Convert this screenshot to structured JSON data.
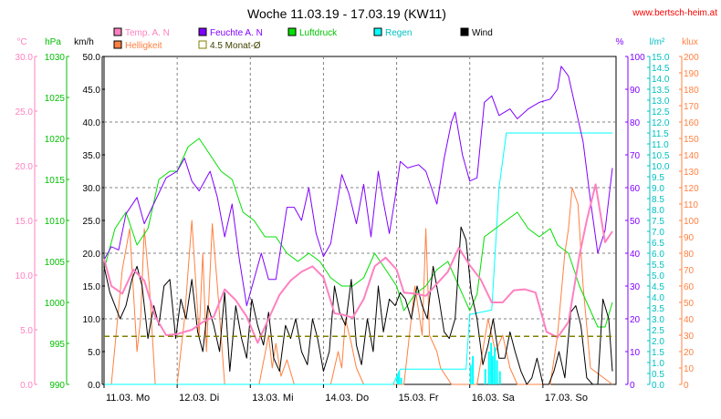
{
  "chart_data": {
    "type": "line",
    "title": "Woche 11.03.19 - 17.03.19 (KW11)",
    "source": "www.bertsch-heim.at",
    "days": [
      "11.03.  Mo",
      "12.03.  Di",
      "13.03.  Mi",
      "14.03.  Do",
      "15.03.  Fr",
      "16.03.  Sa",
      "17.03.  So"
    ],
    "axes": {
      "temp": {
        "label": "°C",
        "min": 0,
        "max": 30,
        "step": 5,
        "decimals": 1,
        "color": "#ff80c0"
      },
      "pres": {
        "label": "hPa",
        "min": 990,
        "max": 1030,
        "step": 5,
        "decimals": 0,
        "color": "#00c000"
      },
      "wind": {
        "label": "km/h",
        "min": 0,
        "max": 50,
        "step": 5,
        "decimals": 1,
        "color": "#000000"
      },
      "hum": {
        "label": "%",
        "min": 0,
        "max": 100,
        "step": 10,
        "decimals": 0,
        "color": "#8000ff"
      },
      "rain": {
        "label": "l/m²",
        "min": 0,
        "max": 15,
        "step": 0.5,
        "decimals": 1,
        "color": "#00c0c0"
      },
      "light": {
        "label": "klux",
        "min": 0,
        "max": 200,
        "step": 10,
        "decimals": 0,
        "color": "#ff8040"
      }
    },
    "legend": [
      {
        "name": "Temp. A. N",
        "color": "#ff80c0",
        "filled": true
      },
      {
        "name": "Feuchte A. N",
        "color": "#8000ff",
        "filled": true
      },
      {
        "name": "Luftdruck",
        "color": "#00e000",
        "filled": true
      },
      {
        "name": "Regen",
        "color": "#00ffff",
        "filled": true
      },
      {
        "name": "Wind",
        "color": "#000000",
        "filled": true
      },
      {
        "name": "Helligkeit",
        "color": "#ff8040",
        "filled": true
      },
      {
        "name": "4.5 Monat-Ø",
        "color": "#808000",
        "filled": false
      }
    ],
    "series": [
      {
        "name": "Temp. A. N",
        "axis": "temp",
        "color": "#ff80c0",
        "width": 2,
        "x": [
          0,
          0.1,
          0.25,
          0.4,
          0.55,
          0.7,
          0.85,
          1.0,
          1.2,
          1.35,
          1.5,
          1.65,
          1.8,
          1.95,
          2.1,
          2.25,
          2.4,
          2.55,
          2.7,
          2.85,
          3.0,
          3.15,
          3.25,
          3.4,
          3.55,
          3.7,
          3.85,
          4.0,
          4.1,
          4.25,
          4.4,
          4.55,
          4.7,
          4.85,
          5.0,
          5.15,
          5.3,
          5.45,
          5.6,
          5.75,
          5.9,
          6.05,
          6.2,
          6.35,
          6.5,
          6.6,
          6.72,
          6.85,
          6.95
        ],
        "y": [
          11.5,
          9.0,
          8.3,
          10.5,
          9.5,
          6.2,
          4.5,
          4.6,
          5.0,
          5.7,
          6.2,
          8.7,
          7.7,
          6.2,
          3.8,
          6.0,
          8.2,
          9.5,
          10.3,
          10.8,
          9.8,
          6.5,
          6.4,
          6.1,
          7.8,
          10.8,
          11.6,
          10.5,
          8.4,
          8.3,
          8.1,
          9.2,
          10.3,
          12.5,
          10.9,
          9.6,
          7.5,
          7.5,
          8.6,
          8.7,
          8.4,
          4.8,
          4.3,
          5.7,
          11.8,
          15.0,
          18.3,
          13.0,
          14.0
        ]
      },
      {
        "name": "Feuchte A. N",
        "axis": "hum",
        "color": "#8000ff",
        "width": 1,
        "x": [
          0,
          0.1,
          0.2,
          0.3,
          0.45,
          0.55,
          0.7,
          0.85,
          1.0,
          1.1,
          1.2,
          1.3,
          1.45,
          1.55,
          1.65,
          1.75,
          1.85,
          1.95,
          2.05,
          2.15,
          2.25,
          2.35,
          2.5,
          2.6,
          2.7,
          2.8,
          2.9,
          3.0,
          3.1,
          3.25,
          3.35,
          3.45,
          3.55,
          3.65,
          3.75,
          3.8,
          3.9,
          3.98,
          4.05,
          4.15,
          4.3,
          4.4,
          4.55,
          4.65,
          4.75,
          4.8,
          4.9,
          5.0,
          5.1,
          5.2,
          5.3,
          5.4,
          5.55,
          5.65,
          5.8,
          5.95,
          6.1,
          6.2,
          6.25,
          6.35,
          6.45,
          6.55,
          6.65,
          6.75,
          6.85,
          6.95
        ],
        "y": [
          38,
          42,
          41,
          52,
          57,
          49,
          56,
          63,
          65,
          69,
          62,
          59,
          65,
          57,
          45,
          55,
          38,
          24,
          32,
          40,
          32,
          32,
          54,
          54,
          50,
          60,
          46,
          39,
          43,
          64,
          58,
          49,
          61,
          45,
          65,
          58,
          46,
          57,
          68,
          66,
          67,
          65,
          55,
          69,
          80,
          83,
          70,
          62,
          63,
          86,
          88,
          82,
          84,
          81,
          84,
          86,
          87,
          90,
          97,
          94,
          84,
          74,
          56,
          40,
          47,
          66
        ]
      },
      {
        "name": "Luftdruck",
        "axis": "pres",
        "color": "#00e000",
        "width": 1,
        "x": [
          0,
          0.15,
          0.3,
          0.45,
          0.6,
          0.75,
          0.9,
          1.0,
          1.15,
          1.3,
          1.45,
          1.6,
          1.75,
          1.9,
          2.05,
          2.2,
          2.35,
          2.5,
          2.65,
          2.8,
          2.95,
          3.1,
          3.25,
          3.4,
          3.55,
          3.7,
          3.85,
          4.0,
          4.1,
          4.25,
          4.4,
          4.55,
          4.7,
          4.85,
          5.0,
          5.1,
          5.2,
          5.35,
          5.5,
          5.65,
          5.8,
          5.95,
          6.1,
          6.2,
          6.35,
          6.5,
          6.6,
          6.75,
          6.85,
          6.95
        ],
        "y": [
          1004,
          1009,
          1011,
          1007,
          1009,
          1015,
          1016,
          1016,
          1019,
          1020,
          1018,
          1016,
          1015,
          1011,
          1010,
          1008,
          1008,
          1006,
          1005,
          1006,
          1005,
          1003,
          1002,
          1002,
          1003,
          1006,
          1004,
          1002,
          999,
          1001,
          1002,
          1004,
          1005,
          1002,
          999,
          1001,
          1008,
          1009,
          1010,
          1011,
          1009,
          1008,
          1009,
          1007,
          1006,
          1002,
          1000,
          997,
          997,
          1000
        ]
      },
      {
        "name": "Regen",
        "axis": "rain",
        "color": "#00ffff",
        "width": 1,
        "x": [
          0,
          3.95,
          4.05,
          4.5,
          4.65,
          4.95,
          5.0,
          5.3,
          5.4,
          5.5,
          6.95
        ],
        "y": [
          0,
          0,
          0.7,
          0.7,
          0.7,
          0.7,
          3.2,
          3.4,
          9.0,
          11.5,
          11.5
        ]
      },
      {
        "name": "Wind",
        "axis": "wind",
        "color": "#000000",
        "width": 1,
        "x": [
          0,
          0.08,
          0.15,
          0.22,
          0.3,
          0.38,
          0.45,
          0.52,
          0.6,
          0.68,
          0.75,
          0.82,
          0.9,
          0.98,
          1.05,
          1.12,
          1.2,
          1.28,
          1.35,
          1.42,
          1.5,
          1.58,
          1.65,
          1.72,
          1.8,
          1.88,
          1.95,
          2.02,
          2.1,
          2.18,
          2.25,
          2.32,
          2.4,
          2.48,
          2.55,
          2.62,
          2.7,
          2.78,
          2.85,
          2.92,
          3.0,
          3.08,
          3.15,
          3.22,
          3.3,
          3.38,
          3.45,
          3.52,
          3.6,
          3.68,
          3.75,
          3.82,
          3.9,
          3.98,
          4.05,
          4.12,
          4.2,
          4.28,
          4.35,
          4.42,
          4.5,
          4.58,
          4.65,
          4.72,
          4.8,
          4.88,
          4.95,
          5.02,
          5.1,
          5.18,
          5.25,
          5.32,
          5.4,
          5.48,
          5.55,
          5.62,
          5.7,
          5.78,
          5.85,
          5.92,
          6.0,
          6.08,
          6.15,
          6.22,
          6.3,
          6.38,
          6.45,
          6.52,
          6.6,
          6.68,
          6.75,
          6.82,
          6.9,
          6.95
        ],
        "y": [
          18,
          14,
          12,
          10,
          12,
          16,
          18,
          15,
          7,
          12,
          9,
          15,
          16,
          7,
          13,
          10,
          16,
          8,
          5,
          12,
          9,
          5,
          14,
          2,
          12,
          7,
          4,
          13,
          9,
          6,
          11,
          4,
          2,
          9,
          7,
          10,
          5,
          3,
          10,
          7,
          2,
          5,
          15,
          11,
          9,
          16,
          6,
          3,
          10,
          5,
          15,
          8,
          13,
          12,
          14,
          13,
          10,
          15,
          12,
          10,
          18,
          13,
          8,
          7,
          10,
          24,
          22,
          14,
          10,
          3,
          6,
          10,
          4,
          4,
          8,
          5,
          2,
          0,
          1,
          4,
          0,
          0,
          2,
          5,
          1,
          11,
          12,
          9,
          1,
          0,
          0,
          13,
          10,
          2
        ]
      },
      {
        "name": "Helligkeit",
        "axis": "light",
        "color": "#ff8040",
        "width": 1,
        "x": [
          0,
          0.1,
          0.25,
          0.35,
          0.45,
          0.5,
          0.55,
          0.62,
          0.7,
          1.0,
          1.1,
          1.2,
          1.3,
          1.35,
          1.4,
          1.48,
          1.55,
          1.65,
          2.0,
          2.12,
          2.25,
          2.3,
          2.35,
          2.42,
          2.5,
          2.6,
          3.0,
          3.1,
          3.2,
          3.25,
          3.3,
          3.38,
          3.45,
          3.55,
          4.0,
          4.1,
          4.25,
          4.35,
          4.4,
          4.45,
          4.55,
          4.6,
          4.75,
          5.0,
          5.1,
          5.25,
          5.35,
          5.45,
          5.55,
          5.65,
          6.0,
          6.1,
          6.2,
          6.3,
          6.35,
          6.4,
          6.48,
          6.55,
          6.65,
          6.95
        ],
        "y": [
          0,
          0,
          70,
          95,
          20,
          40,
          95,
          60,
          0,
          0,
          40,
          100,
          30,
          80,
          20,
          98,
          60,
          0,
          0,
          0,
          30,
          10,
          25,
          5,
          15,
          0,
          0,
          0,
          20,
          10,
          40,
          25,
          10,
          0,
          0,
          0,
          60,
          30,
          95,
          30,
          20,
          10,
          0,
          0,
          0,
          40,
          20,
          30,
          10,
          0,
          0,
          0,
          30,
          80,
          95,
          120,
          110,
          60,
          10,
          0
        ]
      }
    ],
    "reference_lines": [
      {
        "name": "4.5 Monat-Ø",
        "axis": "temp",
        "value": 4.4,
        "color": "#808000",
        "dash": "6,4"
      }
    ]
  }
}
